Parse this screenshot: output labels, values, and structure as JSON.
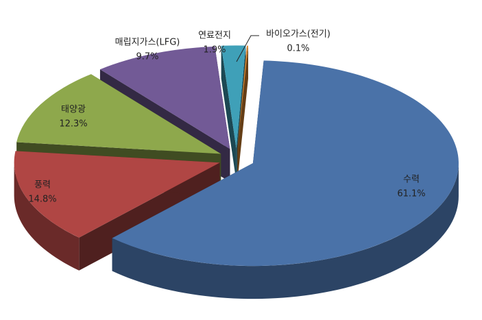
{
  "chart_data": {
    "type": "pie",
    "categories": [
      "수력",
      "풍력",
      "태양광",
      "매립지가스(LFG)",
      "연료전지",
      "바이오가스(전기)"
    ],
    "values": [
      61.1,
      14.8,
      12.3,
      9.7,
      1.9,
      0.1
    ],
    "value_labels": [
      "61.1%",
      "14.8%",
      "12.3%",
      "9.7%",
      "1.9%",
      "0.1%"
    ],
    "colors": [
      "#4a72a8",
      "#b04644",
      "#8ea84c",
      "#725a96",
      "#3fa0b8",
      "#e08a30"
    ]
  }
}
